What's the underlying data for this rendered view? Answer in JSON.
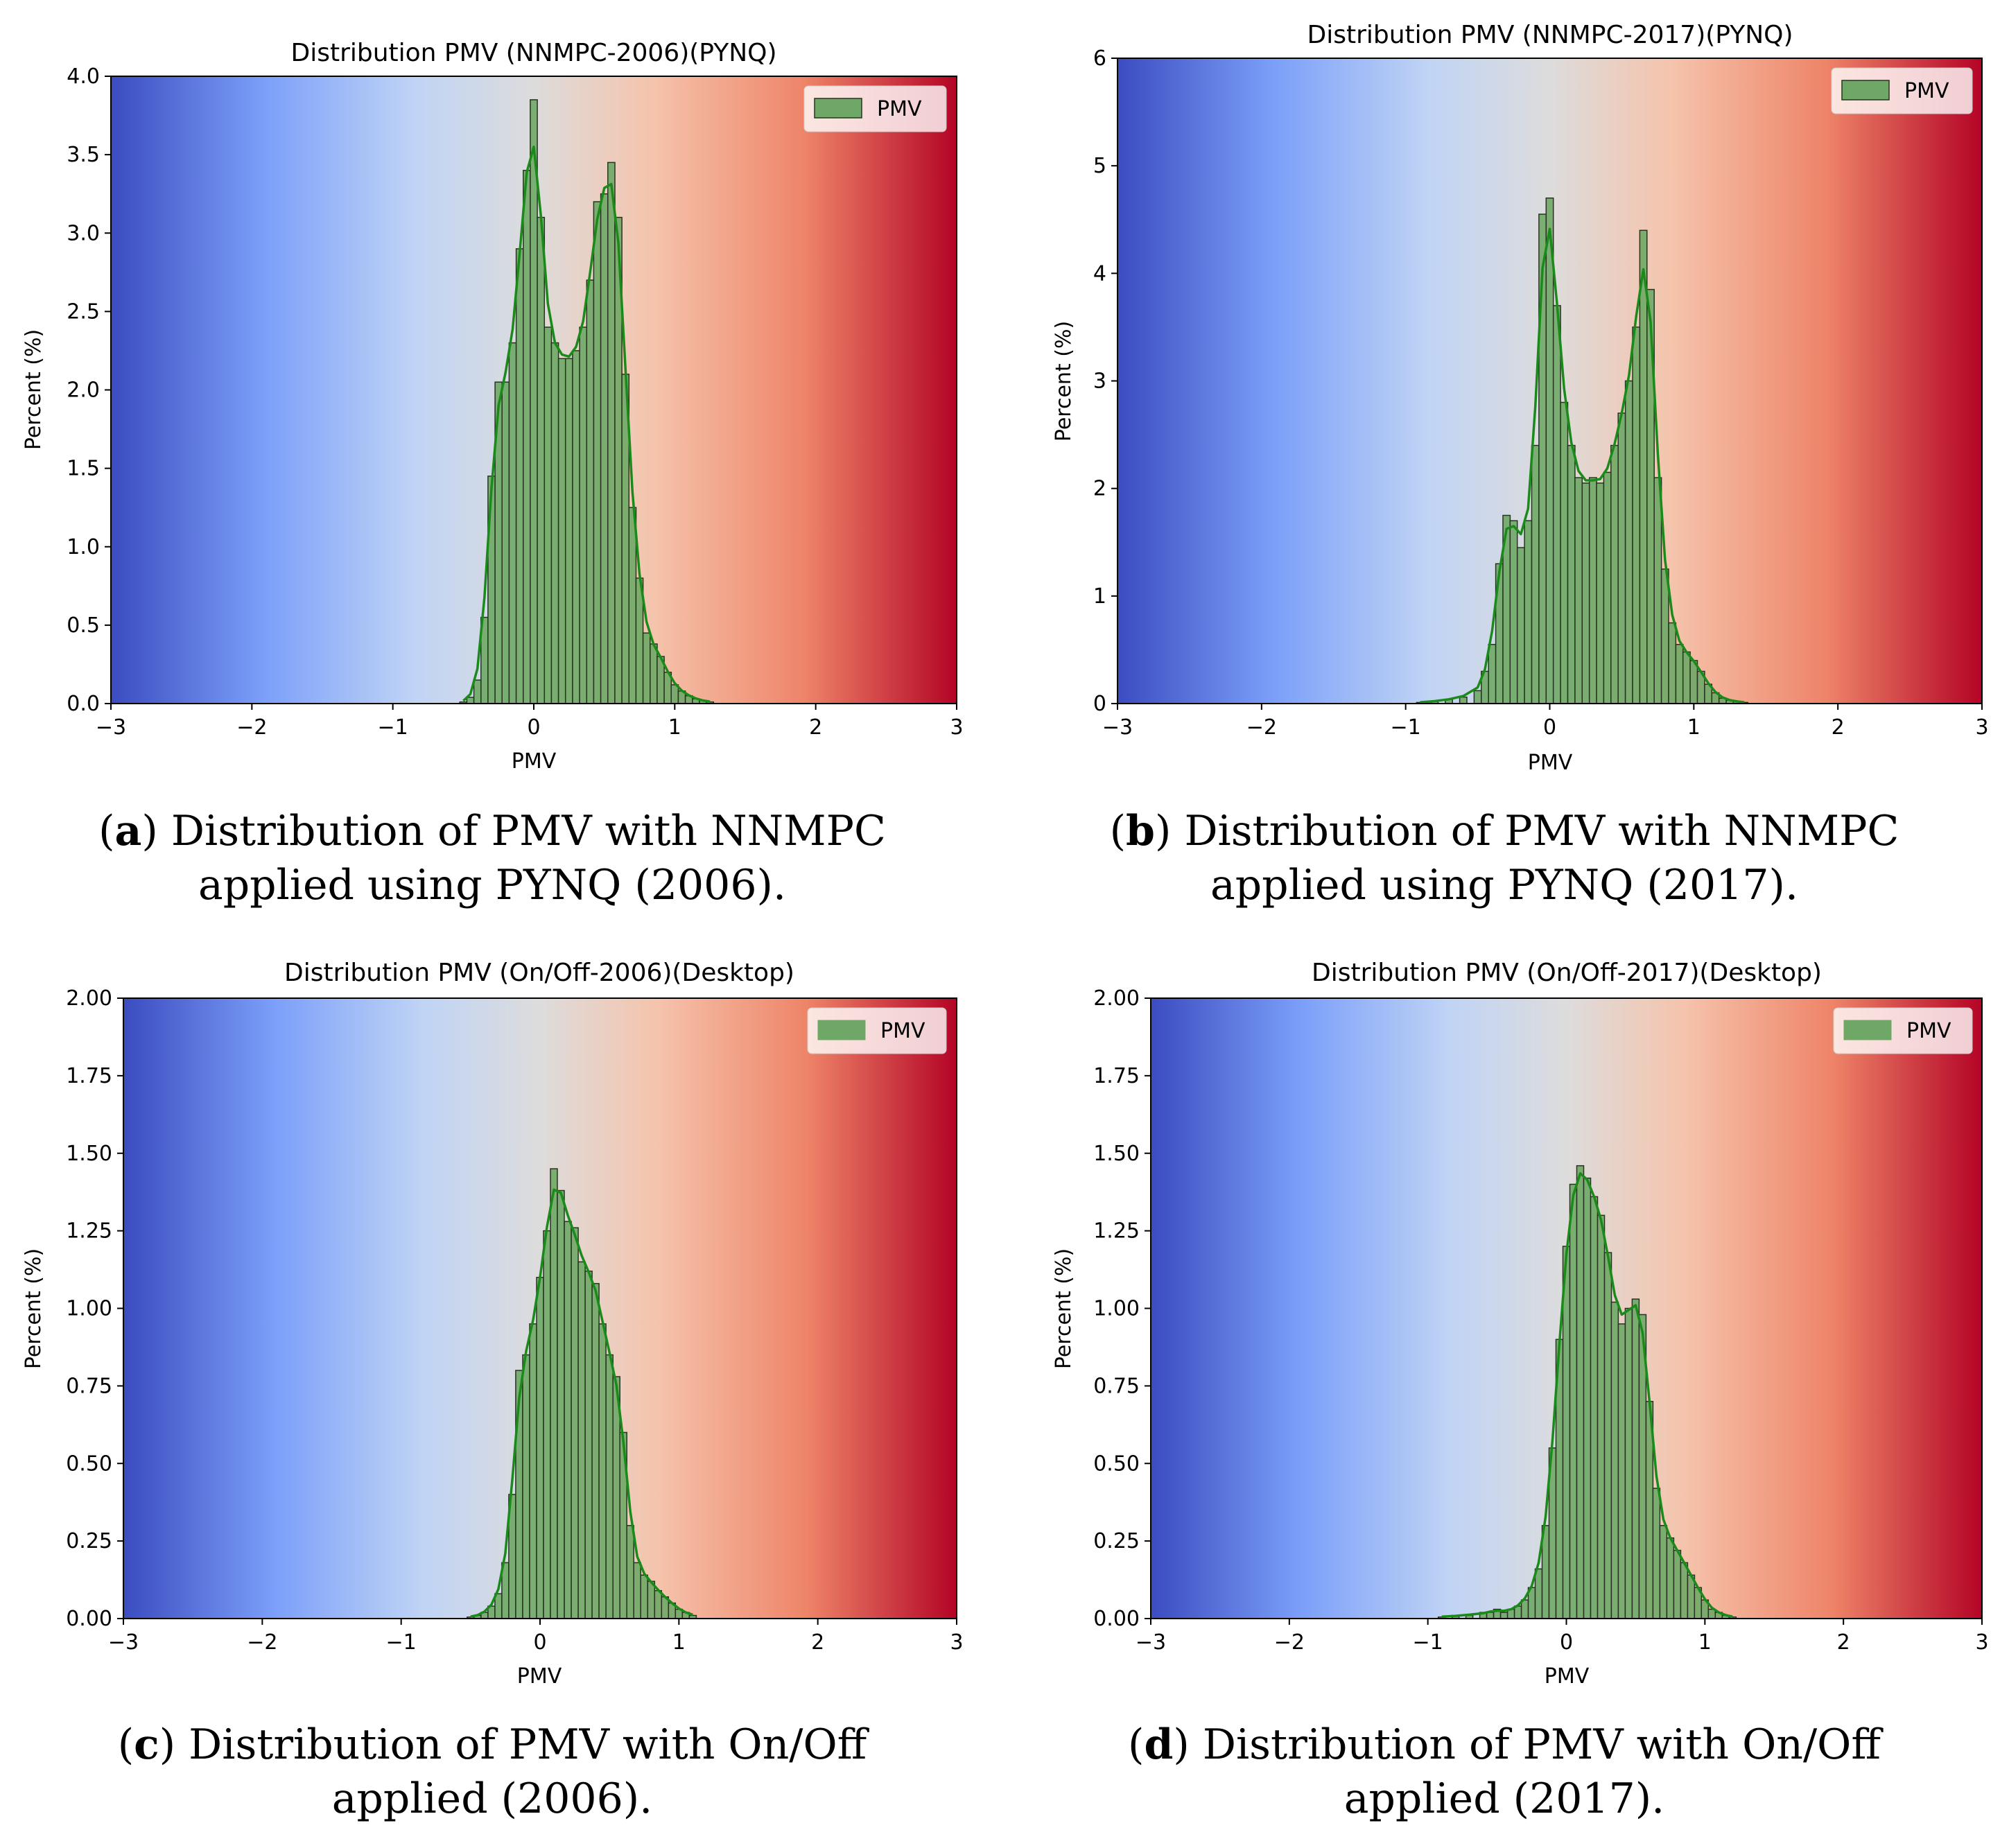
{
  "colors": {
    "bar_fill": "#6fa866",
    "bar_edge": "#26341f",
    "kde_line": "#1a8a1a",
    "gradient": [
      "#3b4cc0",
      "#7b9ff9",
      "#c0d4f5",
      "#dddcdc",
      "#f5c4ac",
      "#ee8468",
      "#b40426"
    ]
  },
  "chart_data": [
    {
      "type": "bar",
      "title": "Distribution PMV (NNMPC-2006)(PYNQ)",
      "xlabel": "PMV",
      "ylabel": "Percent (%)",
      "xlim": [
        -3,
        3
      ],
      "ylim": [
        0,
        4.0
      ],
      "xticks": [
        "−3",
        "−2",
        "−1",
        "0",
        "1",
        "2",
        "3"
      ],
      "yticks": [
        "0.0",
        "0.5",
        "1.0",
        "1.5",
        "2.0",
        "2.5",
        "3.0",
        "3.5",
        "4.0"
      ],
      "legend": "PMV",
      "legend_position": "top-right",
      "caption_label": "a",
      "caption": "Distribution of PMV with NNMPC applied using PYNQ (2006).",
      "series": [
        {
          "name": "PMV",
          "x": [
            -0.5,
            -0.45,
            -0.4,
            -0.35,
            -0.3,
            -0.25,
            -0.2,
            -0.15,
            -0.1,
            -0.05,
            0.0,
            0.05,
            0.1,
            0.15,
            0.2,
            0.25,
            0.3,
            0.35,
            0.4,
            0.45,
            0.5,
            0.55,
            0.6,
            0.65,
            0.7,
            0.75,
            0.8,
            0.85,
            0.9,
            0.95,
            1.0,
            1.05,
            1.1,
            1.15,
            1.2,
            1.25
          ],
          "values": [
            0.01,
            0.04,
            0.15,
            0.55,
            1.45,
            2.05,
            2.05,
            2.3,
            2.9,
            3.4,
            3.85,
            3.1,
            2.4,
            2.3,
            2.2,
            2.2,
            2.25,
            2.4,
            2.7,
            3.2,
            3.25,
            3.45,
            3.1,
            2.1,
            1.25,
            0.8,
            0.45,
            0.38,
            0.3,
            0.2,
            0.12,
            0.08,
            0.05,
            0.03,
            0.02,
            0.01
          ]
        }
      ]
    },
    {
      "type": "bar",
      "title": "Distribution PMV (NNMPC-2017)(PYNQ)",
      "xlabel": "PMV",
      "ylabel": "Percent (%)",
      "xlim": [
        -3,
        3
      ],
      "ylim": [
        0,
        6
      ],
      "xticks": [
        "−3",
        "−2",
        "−1",
        "0",
        "1",
        "2",
        "3"
      ],
      "yticks": [
        "0",
        "1",
        "2",
        "3",
        "4",
        "5",
        "6"
      ],
      "legend": "PMV",
      "legend_position": "top-right",
      "caption_label": "b",
      "caption": "Distribution of PMV with NNMPC applied using PYNQ (2017).",
      "series": [
        {
          "name": "PMV",
          "x": [
            -0.9,
            -0.8,
            -0.7,
            -0.6,
            -0.5,
            -0.45,
            -0.4,
            -0.35,
            -0.3,
            -0.25,
            -0.2,
            -0.15,
            -0.1,
            -0.05,
            0.0,
            0.05,
            0.1,
            0.15,
            0.2,
            0.25,
            0.3,
            0.35,
            0.4,
            0.45,
            0.5,
            0.55,
            0.6,
            0.65,
            0.7,
            0.75,
            0.8,
            0.85,
            0.9,
            0.95,
            1.0,
            1.05,
            1.1,
            1.15,
            1.2,
            1.25,
            1.3,
            1.35
          ],
          "values": [
            0.01,
            0.02,
            0.04,
            0.06,
            0.12,
            0.3,
            0.55,
            1.3,
            1.75,
            1.7,
            1.45,
            1.7,
            2.4,
            4.55,
            4.7,
            3.7,
            2.8,
            2.4,
            2.1,
            2.05,
            2.1,
            2.05,
            2.15,
            2.4,
            2.7,
            3.0,
            3.5,
            4.4,
            3.85,
            2.1,
            1.25,
            0.75,
            0.55,
            0.48,
            0.4,
            0.3,
            0.18,
            0.1,
            0.05,
            0.03,
            0.02,
            0.01
          ]
        }
      ]
    },
    {
      "type": "bar",
      "title": "Distribution PMV (On/Off-2006)(Desktop)",
      "xlabel": "PMV",
      "ylabel": "Percent (%)",
      "xlim": [
        -3,
        3
      ],
      "ylim": [
        0,
        2.0
      ],
      "xticks": [
        "−3",
        "−2",
        "−1",
        "0",
        "1",
        "2",
        "3"
      ],
      "yticks": [
        "0.00",
        "0.25",
        "0.50",
        "0.75",
        "1.00",
        "1.25",
        "1.50",
        "1.75",
        "2.00"
      ],
      "legend": "PMV",
      "legend_position": "top-right",
      "caption_label": "c",
      "caption": "Distribution of PMV with On/Off applied (2006).",
      "series": [
        {
          "name": "PMV",
          "x": [
            -0.5,
            -0.45,
            -0.4,
            -0.35,
            -0.3,
            -0.25,
            -0.2,
            -0.15,
            -0.1,
            -0.05,
            0.0,
            0.05,
            0.1,
            0.15,
            0.2,
            0.25,
            0.3,
            0.35,
            0.4,
            0.45,
            0.5,
            0.55,
            0.6,
            0.65,
            0.7,
            0.75,
            0.8,
            0.85,
            0.9,
            0.95,
            1.0,
            1.05,
            1.1
          ],
          "values": [
            0.005,
            0.01,
            0.02,
            0.04,
            0.08,
            0.18,
            0.4,
            0.8,
            0.85,
            0.95,
            1.1,
            1.25,
            1.45,
            1.38,
            1.28,
            1.26,
            1.15,
            1.12,
            1.08,
            0.95,
            0.85,
            0.78,
            0.6,
            0.3,
            0.18,
            0.14,
            0.12,
            0.09,
            0.07,
            0.05,
            0.03,
            0.02,
            0.01
          ]
        }
      ]
    },
    {
      "type": "bar",
      "title": "Distribution PMV (On/Off-2017)(Desktop)",
      "xlabel": "PMV",
      "ylabel": "Percent (%)",
      "xlim": [
        -3,
        3
      ],
      "ylim": [
        0,
        2.0
      ],
      "xticks": [
        "−3",
        "−2",
        "−1",
        "0",
        "1",
        "2",
        "3"
      ],
      "yticks": [
        "0.00",
        "0.25",
        "0.50",
        "0.75",
        "1.00",
        "1.25",
        "1.50",
        "1.75",
        "2.00"
      ],
      "legend": "PMV",
      "legend_position": "top-right",
      "caption_label": "d",
      "caption": "Distribution of PMV with On/Off applied (2017).",
      "series": [
        {
          "name": "PMV",
          "x": [
            -0.9,
            -0.8,
            -0.7,
            -0.6,
            -0.55,
            -0.5,
            -0.45,
            -0.4,
            -0.35,
            -0.3,
            -0.25,
            -0.2,
            -0.15,
            -0.1,
            -0.05,
            0.0,
            0.05,
            0.1,
            0.15,
            0.2,
            0.25,
            0.3,
            0.35,
            0.4,
            0.45,
            0.5,
            0.55,
            0.6,
            0.65,
            0.7,
            0.75,
            0.8,
            0.85,
            0.9,
            0.95,
            1.0,
            1.05,
            1.1,
            1.15,
            1.2
          ],
          "values": [
            0.005,
            0.01,
            0.01,
            0.02,
            0.02,
            0.03,
            0.02,
            0.03,
            0.04,
            0.06,
            0.1,
            0.16,
            0.3,
            0.55,
            0.9,
            1.2,
            1.4,
            1.46,
            1.42,
            1.36,
            1.3,
            1.18,
            1.02,
            0.95,
            1.0,
            1.03,
            0.98,
            0.7,
            0.42,
            0.3,
            0.26,
            0.22,
            0.18,
            0.14,
            0.1,
            0.06,
            0.03,
            0.02,
            0.01,
            0.005
          ]
        }
      ]
    }
  ]
}
